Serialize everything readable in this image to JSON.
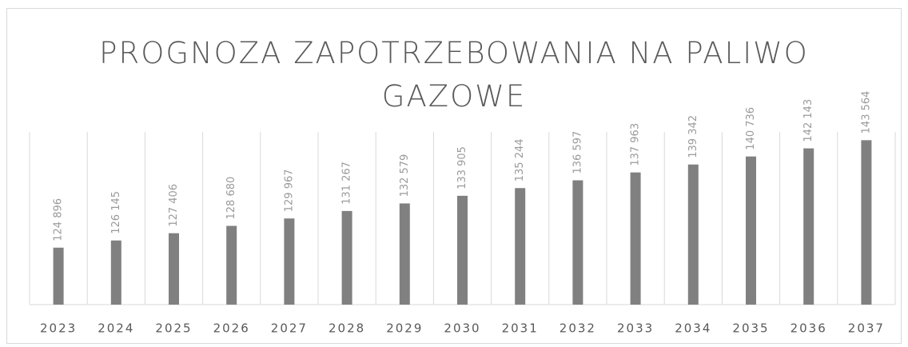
{
  "chart_data": {
    "type": "bar",
    "title": "PROGNOZA ZAPOTRZEBOWANIA NA PALIWO GAZOWE",
    "categories": [
      "2023",
      "2024",
      "2025",
      "2026",
      "2027",
      "2028",
      "2029",
      "2030",
      "2031",
      "2032",
      "2033",
      "2034",
      "2035",
      "2036",
      "2037"
    ],
    "values": [
      124896,
      126145,
      127406,
      128680,
      129967,
      131267,
      132579,
      133905,
      135244,
      136597,
      137963,
      139342,
      140736,
      142143,
      143564
    ],
    "value_labels": [
      "124 896",
      "126 145",
      "127 406",
      "128 680",
      "129 967",
      "131 267",
      "132 579",
      "133 905",
      "135 244",
      "136 597",
      "137 963",
      "139 342",
      "140 736",
      "142 143",
      "143 564"
    ],
    "color": "#808080",
    "ylim": [
      115000,
      145000
    ],
    "grid": true
  }
}
